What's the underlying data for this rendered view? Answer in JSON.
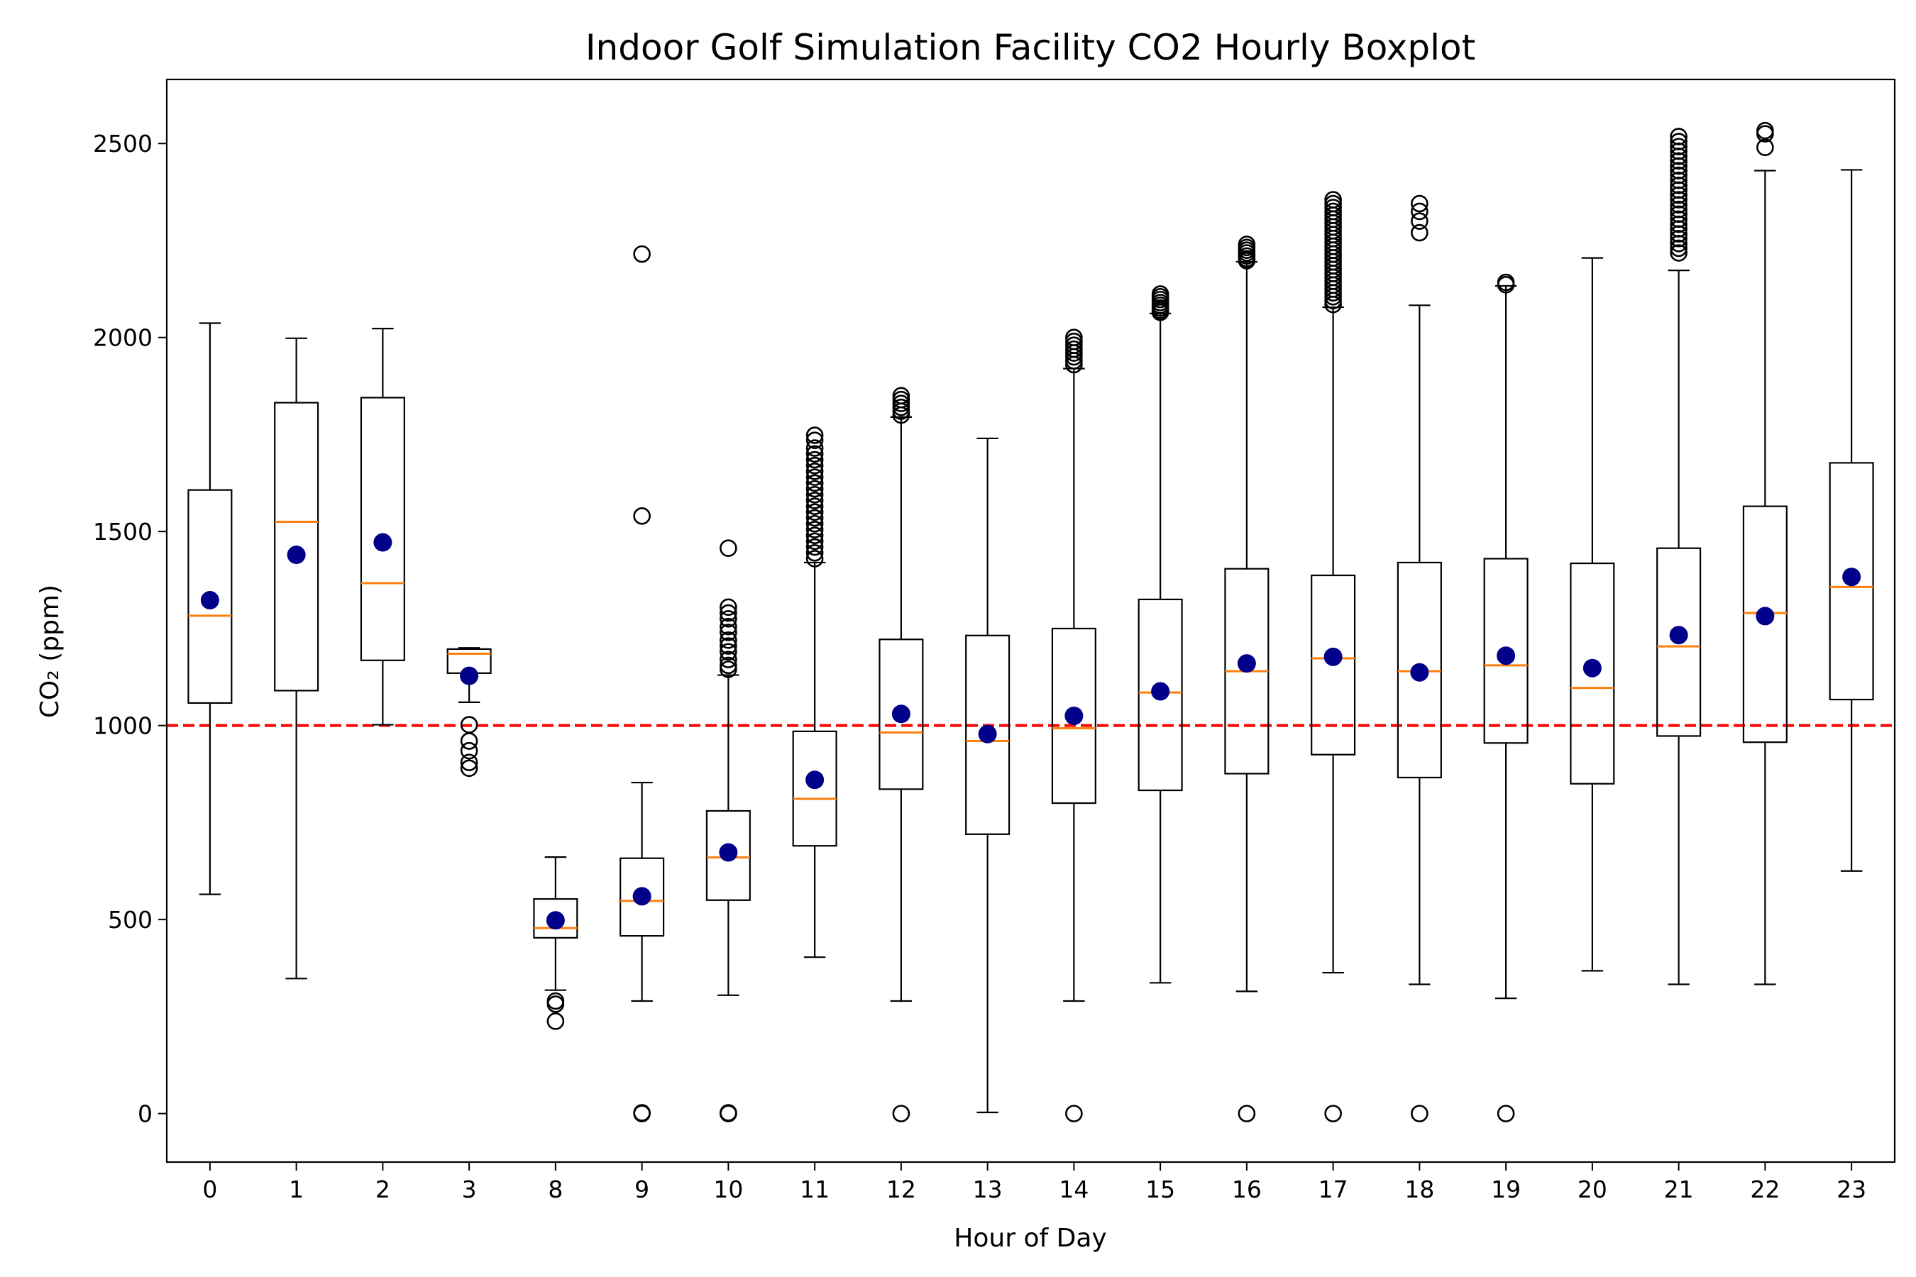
{
  "chart_data": {
    "type": "boxplot",
    "title": "Indoor Golf Simulation Facility CO2 Hourly Boxplot",
    "xlabel": "Hour of Day",
    "ylabel": "CO₂ (ppm)",
    "ylim": [
      -125,
      2665
    ],
    "yticks": [
      0,
      500,
      1000,
      1500,
      2000,
      2500
    ],
    "grid": false,
    "threshold": {
      "value": 1000,
      "color": "#ff0000",
      "style": "dashed"
    },
    "colors": {
      "box": "#000000",
      "median": "#ff7f0e",
      "mean": "#00008b"
    },
    "categories": [
      "0",
      "1",
      "2",
      "3",
      "8",
      "9",
      "10",
      "11",
      "12",
      "13",
      "14",
      "15",
      "16",
      "17",
      "18",
      "19",
      "20",
      "21",
      "22",
      "23"
    ],
    "series": [
      {
        "hour": "0",
        "whisker_low": 565,
        "q1": 1058,
        "median": 1283,
        "q3": 1607,
        "whisker_high": 2037,
        "mean": 1323,
        "outliers": []
      },
      {
        "hour": "1",
        "whisker_low": 348,
        "q1": 1090,
        "median": 1525,
        "q3": 1832,
        "whisker_high": 1998,
        "mean": 1440,
        "outliers": []
      },
      {
        "hour": "2",
        "whisker_low": 1002,
        "q1": 1168,
        "median": 1367,
        "q3": 1845,
        "whisker_high": 2023,
        "mean": 1472,
        "outliers": []
      },
      {
        "hour": "3",
        "whisker_low": 1060,
        "q1": 1135,
        "median": 1185,
        "q3": 1197,
        "whisker_high": 1200,
        "mean": 1128,
        "outliers": [
          1002,
          960,
          935,
          905,
          890
        ]
      },
      {
        "hour": "8",
        "whisker_low": 318,
        "q1": 453,
        "median": 478,
        "q3": 553,
        "whisker_high": 661,
        "mean": 498,
        "outliers": [
          290,
          282,
          238
        ]
      },
      {
        "hour": "9",
        "whisker_low": 290,
        "q1": 458,
        "median": 548,
        "q3": 658,
        "whisker_high": 853,
        "mean": 560,
        "outliers": [
          2215,
          1540,
          2,
          0
        ]
      },
      {
        "hour": "10",
        "whisker_low": 305,
        "q1": 550,
        "median": 660,
        "q3": 780,
        "whisker_high": 1130,
        "mean": 673,
        "outliers": [
          1457,
          1305,
          1290,
          1275,
          1255,
          1240,
          1220,
          1205,
          1190,
          1170,
          1155,
          1145,
          2,
          0
        ]
      },
      {
        "hour": "11",
        "whisker_low": 403,
        "q1": 690,
        "median": 811,
        "q3": 985,
        "whisker_high": 1420,
        "mean": 860,
        "outliers": [
          1748,
          1735,
          1715,
          1700,
          1685,
          1670,
          1655,
          1640,
          1625,
          1610,
          1595,
          1580,
          1565,
          1550,
          1535,
          1520,
          1505,
          1490,
          1475,
          1460,
          1445,
          1430
        ]
      },
      {
        "hour": "12",
        "whisker_low": 290,
        "q1": 836,
        "median": 982,
        "q3": 1222,
        "whisker_high": 1795,
        "mean": 1030,
        "outliers": [
          1850,
          1840,
          1830,
          1820,
          1810,
          1800,
          0
        ]
      },
      {
        "hour": "13",
        "whisker_low": 3,
        "q1": 720,
        "median": 960,
        "q3": 1232,
        "whisker_high": 1740,
        "mean": 978,
        "outliers": []
      },
      {
        "hour": "14",
        "whisker_low": 290,
        "q1": 800,
        "median": 993,
        "q3": 1250,
        "whisker_high": 1920,
        "mean": 1025,
        "outliers": [
          2000,
          1990,
          1980,
          1970,
          1960,
          1950,
          1940,
          1930,
          0
        ]
      },
      {
        "hour": "15",
        "whisker_low": 337,
        "q1": 833,
        "median": 1085,
        "q3": 1325,
        "whisker_high": 2062,
        "mean": 1088,
        "outliers": [
          2112,
          2105,
          2098,
          2090,
          2083,
          2076,
          2070,
          2065
        ]
      },
      {
        "hour": "16",
        "whisker_low": 315,
        "q1": 876,
        "median": 1140,
        "q3": 1404,
        "whisker_high": 2195,
        "mean": 1160,
        "outliers": [
          2240,
          2232,
          2225,
          2218,
          2210,
          2203,
          2198,
          0
        ]
      },
      {
        "hour": "17",
        "whisker_low": 363,
        "q1": 925,
        "median": 1173,
        "q3": 1387,
        "whisker_high": 2078,
        "mean": 1177,
        "outliers": [
          2355,
          2345,
          2335,
          2325,
          2315,
          2305,
          2295,
          2285,
          2275,
          2265,
          2255,
          2245,
          2235,
          2225,
          2215,
          2205,
          2195,
          2185,
          2175,
          2165,
          2155,
          2145,
          2135,
          2125,
          2115,
          2105,
          2095,
          2085,
          0
        ]
      },
      {
        "hour": "18",
        "whisker_low": 333,
        "q1": 866,
        "median": 1140,
        "q3": 1420,
        "whisker_high": 2083,
        "mean": 1137,
        "outliers": [
          2345,
          2325,
          2300,
          2270,
          0
        ]
      },
      {
        "hour": "19",
        "whisker_low": 297,
        "q1": 955,
        "median": 1155,
        "q3": 1430,
        "whisker_high": 2133,
        "mean": 1180,
        "outliers": [
          2142,
          2136,
          0
        ]
      },
      {
        "hour": "20",
        "whisker_low": 368,
        "q1": 850,
        "median": 1097,
        "q3": 1418,
        "whisker_high": 2205,
        "mean": 1148,
        "outliers": []
      },
      {
        "hour": "21",
        "whisker_low": 333,
        "q1": 973,
        "median": 1204,
        "q3": 1457,
        "whisker_high": 2173,
        "mean": 1233,
        "outliers": [
          2518,
          2505,
          2492,
          2480,
          2467,
          2455,
          2442,
          2430,
          2418,
          2405,
          2392,
          2380,
          2367,
          2355,
          2342,
          2330,
          2318,
          2305,
          2292,
          2280,
          2267,
          2255,
          2242,
          2230,
          2218
        ]
      },
      {
        "hour": "22",
        "whisker_low": 333,
        "q1": 957,
        "median": 1290,
        "q3": 1565,
        "whisker_high": 2430,
        "mean": 1282,
        "outliers": [
          2533,
          2525,
          2490
        ]
      },
      {
        "hour": "23",
        "whisker_low": 625,
        "q1": 1067,
        "median": 1357,
        "q3": 1677,
        "whisker_high": 2432,
        "mean": 1383,
        "outliers": []
      }
    ]
  }
}
